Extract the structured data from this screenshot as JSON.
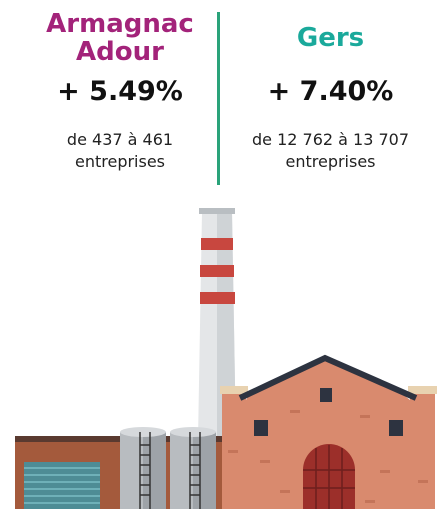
{
  "left": {
    "title": "Armagnac Adour",
    "change": "+ 5.49%",
    "description": "de 437 à 461 entreprises"
  },
  "right": {
    "title": "Gers",
    "change": "+ 7.40%",
    "description": "de 12 762 à 13 707 entreprises"
  }
}
